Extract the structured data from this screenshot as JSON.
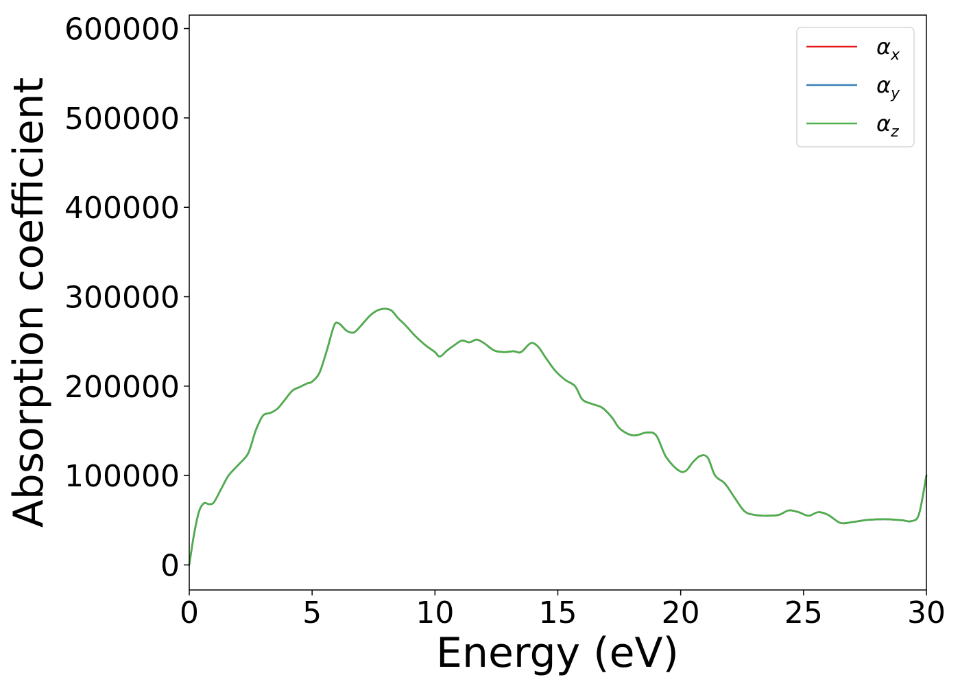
{
  "chart_data": {
    "type": "line",
    "title": "",
    "xlabel": "Energy (eV)",
    "ylabel": "Absorption coefficient",
    "xlim": [
      0,
      30
    ],
    "ylim": [
      -28000,
      615000
    ],
    "xticks": [
      0,
      5,
      10,
      15,
      20,
      25,
      30
    ],
    "xtick_labels": [
      "0",
      "5",
      "10",
      "15",
      "20",
      "25",
      "30"
    ],
    "yticks": [
      0,
      100000,
      200000,
      300000,
      400000,
      500000,
      600000
    ],
    "ytick_labels": [
      "0",
      "100000",
      "200000",
      "300000",
      "400000",
      "500000",
      "600000"
    ],
    "grid": false,
    "legend_position": "top-right",
    "x": [
      0.0,
      0.2,
      0.4,
      0.6,
      0.8,
      1.0,
      1.3,
      1.6,
      2.0,
      2.4,
      2.7,
      3.0,
      3.3,
      3.6,
      3.9,
      4.2,
      4.5,
      4.8,
      5.0,
      5.3,
      5.6,
      5.9,
      6.1,
      6.4,
      6.7,
      7.0,
      7.4,
      7.8,
      8.2,
      8.5,
      8.8,
      9.2,
      9.6,
      10.0,
      10.2,
      10.5,
      10.8,
      11.1,
      11.4,
      11.7,
      12.0,
      12.4,
      12.8,
      13.2,
      13.5,
      13.9,
      14.2,
      14.5,
      14.9,
      15.3,
      15.7,
      16.0,
      16.4,
      16.8,
      17.2,
      17.5,
      17.9,
      18.2,
      18.6,
      19.0,
      19.4,
      19.9,
      20.2,
      20.5,
      20.8,
      21.1,
      21.4,
      21.8,
      22.2,
      22.6,
      23.0,
      23.5,
      24.0,
      24.4,
      24.8,
      25.2,
      25.6,
      26.0,
      26.5,
      27.0,
      27.5,
      28.0,
      28.5,
      29.0,
      29.4,
      29.7,
      30.0
    ],
    "series": [
      {
        "name": "α_x",
        "color": "#e41a1c",
        "values": [
          0,
          35000,
          60000,
          69000,
          68000,
          70000,
          85000,
          100000,
          112000,
          125000,
          150000,
          167000,
          170000,
          175000,
          185000,
          195000,
          199000,
          203000,
          205000,
          215000,
          240000,
          268000,
          270000,
          262000,
          260000,
          268000,
          280000,
          286000,
          285000,
          276000,
          268000,
          256000,
          246000,
          238000,
          233000,
          240000,
          246000,
          251000,
          249000,
          252000,
          248000,
          240000,
          238000,
          239000,
          238000,
          248000,
          244000,
          232000,
          217000,
          207000,
          200000,
          185000,
          180000,
          176000,
          165000,
          153000,
          146000,
          145000,
          148000,
          145000,
          121000,
          106000,
          105000,
          115000,
          122000,
          120000,
          100000,
          91000,
          75000,
          60000,
          56000,
          55000,
          56000,
          61000,
          59000,
          55000,
          59000,
          56000,
          47000,
          48000,
          50000,
          51000,
          51000,
          50000,
          49000,
          57000,
          100000
        ]
      },
      {
        "name": "α_y",
        "color": "#377eb8",
        "values": [
          0,
          35000,
          60000,
          69000,
          68000,
          70000,
          85000,
          100000,
          112000,
          125000,
          150000,
          167000,
          170000,
          175000,
          185000,
          195000,
          199000,
          203000,
          205000,
          215000,
          240000,
          268000,
          270000,
          262000,
          260000,
          268000,
          280000,
          286000,
          285000,
          276000,
          268000,
          256000,
          246000,
          238000,
          233000,
          240000,
          246000,
          251000,
          249000,
          252000,
          248000,
          240000,
          238000,
          239000,
          238000,
          248000,
          244000,
          232000,
          217000,
          207000,
          200000,
          185000,
          180000,
          176000,
          165000,
          153000,
          146000,
          145000,
          148000,
          145000,
          121000,
          106000,
          105000,
          115000,
          122000,
          120000,
          100000,
          91000,
          75000,
          60000,
          56000,
          55000,
          56000,
          61000,
          59000,
          55000,
          59000,
          56000,
          47000,
          48000,
          50000,
          51000,
          51000,
          50000,
          49000,
          57000,
          100000
        ]
      },
      {
        "name": "α_z",
        "color": "#4daf4a",
        "values": [
          0,
          35000,
          60000,
          69000,
          68000,
          70000,
          85000,
          100000,
          112000,
          125000,
          150000,
          167000,
          170000,
          175000,
          185000,
          195000,
          199000,
          203000,
          205000,
          215000,
          240000,
          268000,
          270000,
          262000,
          260000,
          268000,
          280000,
          286000,
          285000,
          276000,
          268000,
          256000,
          246000,
          238000,
          233000,
          240000,
          246000,
          251000,
          249000,
          252000,
          248000,
          240000,
          238000,
          239000,
          238000,
          248000,
          244000,
          232000,
          217000,
          207000,
          200000,
          185000,
          180000,
          176000,
          165000,
          153000,
          146000,
          145000,
          148000,
          145000,
          121000,
          106000,
          105000,
          115000,
          122000,
          120000,
          100000,
          91000,
          75000,
          60000,
          56000,
          55000,
          56000,
          61000,
          59000,
          55000,
          59000,
          56000,
          47000,
          48000,
          50000,
          51000,
          51000,
          50000,
          49000,
          57000,
          100000
        ]
      }
    ],
    "legend": [
      {
        "symbol": "α",
        "subscript": "x",
        "color": "#e41a1c"
      },
      {
        "symbol": "α",
        "subscript": "y",
        "color": "#377eb8"
      },
      {
        "symbol": "α",
        "subscript": "z",
        "color": "#4daf4a"
      }
    ]
  }
}
